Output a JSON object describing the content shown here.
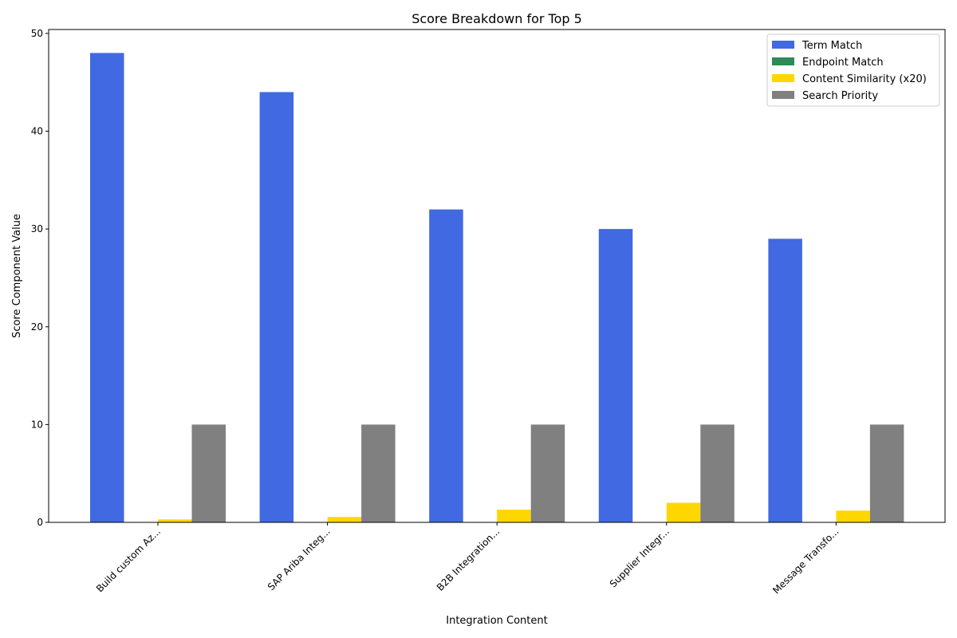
{
  "chart_data": {
    "type": "bar",
    "title": "Score Breakdown for Top 5",
    "xlabel": "Integration Content",
    "ylabel": "Score Component Value",
    "categories": [
      "Build custom Az...",
      "SAP Ariba Integ...",
      "B2B Integration...",
      "Supplier Integr...",
      "Message Transfo..."
    ],
    "series": [
      {
        "name": "Term Match",
        "color": "#4169e1",
        "values": [
          48,
          44,
          32,
          30,
          29
        ]
      },
      {
        "name": "Endpoint Match",
        "color": "#2e8b57",
        "values": [
          0,
          0,
          0,
          0,
          0
        ]
      },
      {
        "name": "Content Similarity (x20)",
        "color": "#ffd700",
        "values": [
          0.3,
          0.55,
          1.3,
          2.0,
          1.2
        ]
      },
      {
        "name": "Search Priority",
        "color": "#808080",
        "values": [
          10,
          10,
          10,
          10,
          10
        ]
      }
    ],
    "ylim": [
      0,
      50.4
    ],
    "yticks": [
      0,
      10,
      20,
      30,
      40,
      50
    ],
    "grid": false,
    "legend_position": "top-right"
  }
}
